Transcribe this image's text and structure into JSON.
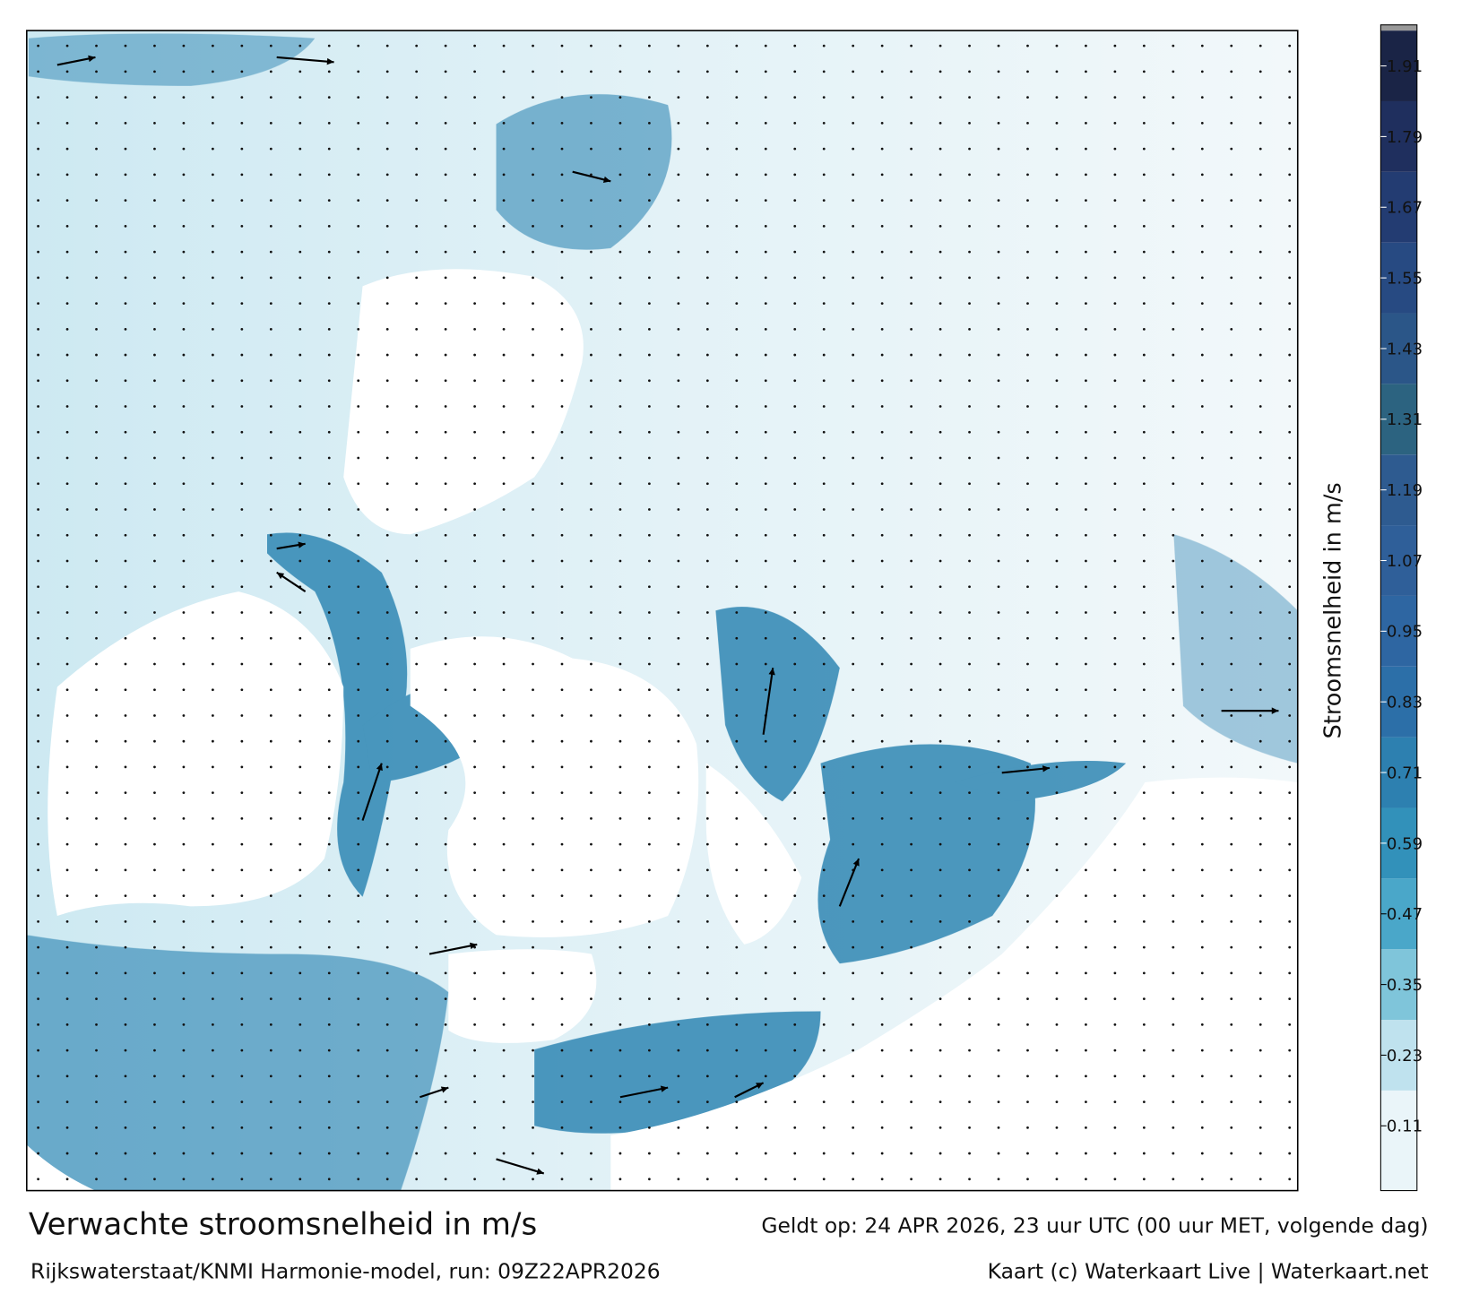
{
  "title": "Verwachte stroomsnelheid in m/s",
  "valid_time": "Geldt op: 24 APR 2026, 23 uur UTC (00 uur MET, volgende dag)",
  "source": "Rijkswaterstaat/KNMI Harmonie-model, run: 09Z22APR2026",
  "credit": "Kaart (c) Waterkaart Live | Waterkaart.net",
  "colorbar": {
    "label": "Stroomsnelheid in m/s",
    "lim": [
      0,
      1.97
    ],
    "ticks": [
      0.11,
      0.23,
      0.35,
      0.47,
      0.59,
      0.71,
      0.83,
      0.95,
      1.07,
      1.19,
      1.31,
      1.43,
      1.55,
      1.67,
      1.79,
      1.91
    ],
    "colors": [
      "#eaf5f9",
      "#bfe2ee",
      "#7fc5da",
      "#4aa7c9",
      "#3291ba",
      "#2d80b0",
      "#2c6fa8",
      "#2e66a2",
      "#2f5f99",
      "#2e5b90",
      "#2c6380",
      "#2b5688",
      "#274a82",
      "#233c72",
      "#1f2f5e",
      "#1a2446"
    ]
  }
}
